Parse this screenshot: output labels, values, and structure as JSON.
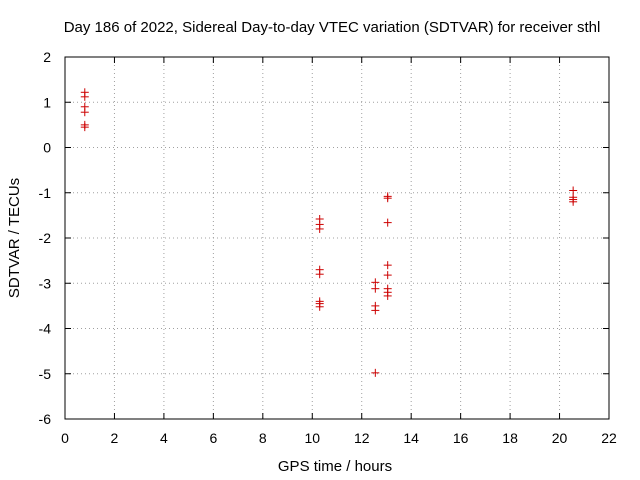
{
  "chart_data": {
    "type": "scatter",
    "title": "Day 186 of 2022, Sidereal Day-to-day VTEC variation (SDTVAR) for receiver sthl",
    "xlabel": "GPS time / hours",
    "ylabel": "SDTVAR / TECUs",
    "xlim": [
      0,
      22
    ],
    "ylim": [
      -6,
      2
    ],
    "xticks": [
      "0",
      "2",
      "4",
      "6",
      "8",
      "10",
      "12",
      "14",
      "16",
      "18",
      "20",
      "22"
    ],
    "yticks": [
      "2",
      "1",
      "0",
      "-1",
      "-2",
      "-3",
      "-4",
      "-5",
      "-6"
    ],
    "grid": true,
    "marker": "+",
    "series": [
      {
        "name": "sthl",
        "color": "#cc0000",
        "points": [
          [
            0.8,
            1.22
          ],
          [
            0.8,
            1.12
          ],
          [
            0.8,
            0.9
          ],
          [
            0.8,
            0.78
          ],
          [
            0.8,
            0.5
          ],
          [
            0.8,
            0.45
          ],
          [
            10.3,
            -1.58
          ],
          [
            10.3,
            -1.7
          ],
          [
            10.3,
            -1.8
          ],
          [
            10.3,
            -2.7
          ],
          [
            10.3,
            -2.8
          ],
          [
            10.3,
            -3.4
          ],
          [
            10.3,
            -3.45
          ],
          [
            10.3,
            -3.52
          ],
          [
            12.55,
            -2.98
          ],
          [
            12.55,
            -3.12
          ],
          [
            12.55,
            -3.5
          ],
          [
            12.55,
            -3.6
          ],
          [
            12.55,
            -4.98
          ],
          [
            13.05,
            -1.08
          ],
          [
            13.05,
            -1.12
          ],
          [
            13.05,
            -1.66
          ],
          [
            13.05,
            -2.6
          ],
          [
            13.05,
            -2.82
          ],
          [
            13.05,
            -3.12
          ],
          [
            13.05,
            -3.2
          ],
          [
            13.05,
            -3.28
          ],
          [
            20.55,
            -0.95
          ],
          [
            20.55,
            -1.1
          ],
          [
            20.55,
            -1.15
          ],
          [
            20.55,
            -1.2
          ]
        ]
      }
    ]
  }
}
